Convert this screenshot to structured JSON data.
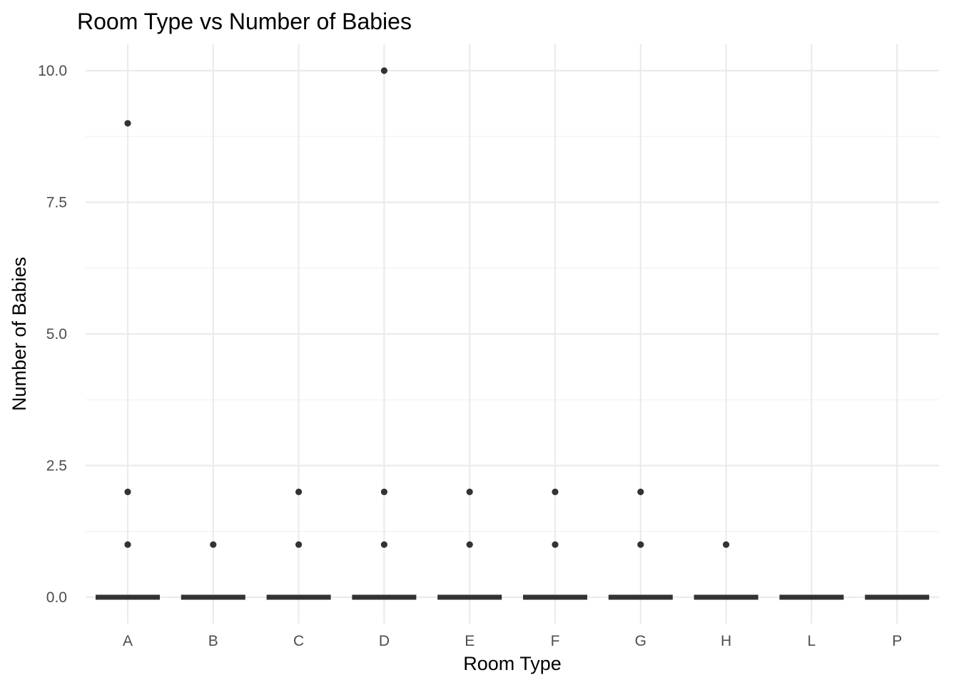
{
  "chart_data": {
    "type": "boxplot",
    "title": "Room Type vs Number of Babies",
    "xlabel": "Room Type",
    "ylabel": "Number of Babies",
    "categories": [
      "A",
      "B",
      "C",
      "D",
      "E",
      "F",
      "G",
      "H",
      "L",
      "P"
    ],
    "boxes": [
      {
        "category": "A",
        "median": 0,
        "q1": 0,
        "q3": 0,
        "outliers": [
          1,
          2,
          9
        ]
      },
      {
        "category": "B",
        "median": 0,
        "q1": 0,
        "q3": 0,
        "outliers": [
          1
        ]
      },
      {
        "category": "C",
        "median": 0,
        "q1": 0,
        "q3": 0,
        "outliers": [
          1,
          2
        ]
      },
      {
        "category": "D",
        "median": 0,
        "q1": 0,
        "q3": 0,
        "outliers": [
          1,
          2,
          10
        ]
      },
      {
        "category": "E",
        "median": 0,
        "q1": 0,
        "q3": 0,
        "outliers": [
          1,
          2
        ]
      },
      {
        "category": "F",
        "median": 0,
        "q1": 0,
        "q3": 0,
        "outliers": [
          1,
          2
        ]
      },
      {
        "category": "G",
        "median": 0,
        "q1": 0,
        "q3": 0,
        "outliers": [
          1,
          2
        ]
      },
      {
        "category": "H",
        "median": 0,
        "q1": 0,
        "q3": 0,
        "outliers": [
          1
        ]
      },
      {
        "category": "L",
        "median": 0,
        "q1": 0,
        "q3": 0,
        "outliers": []
      },
      {
        "category": "P",
        "median": 0,
        "q1": 0,
        "q3": 0,
        "outliers": []
      }
    ],
    "yticks": [
      0,
      2.5,
      5,
      7.5,
      10
    ],
    "ytick_labels": [
      "0.0",
      "2.5",
      "5.0",
      "7.5",
      "10.0"
    ],
    "ylim": [
      -0.5,
      10.5
    ],
    "grid": true,
    "legend": "none",
    "colors": {
      "box": "#333333",
      "point": "#333333",
      "grid_major": "#ebebeb",
      "grid_minor": "#f3f3f3",
      "tick_text": "#4d4d4d"
    }
  }
}
